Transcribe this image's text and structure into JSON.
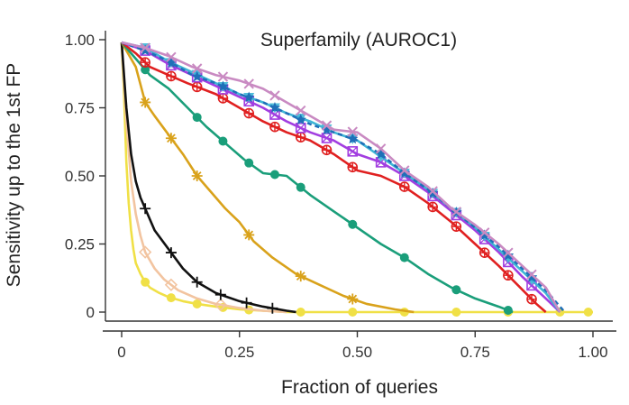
{
  "chart_data": {
    "type": "line",
    "title": "Superfamily (AUROC1)",
    "xlabel": "Fraction of queries",
    "ylabel": "Sensitivity up to the 1st FP",
    "xlim": [
      0,
      1
    ],
    "ylim": [
      0,
      1
    ],
    "xticks": [
      "0",
      "0.25",
      "0.50",
      "0.75",
      "1.00"
    ],
    "xtick_values": [
      0,
      0.25,
      0.5,
      0.75,
      1.0
    ],
    "yticks": [
      "0",
      "0.25",
      "0.50",
      "0.75",
      "1.00"
    ],
    "ytick_values": [
      0,
      0.25,
      0.5,
      0.75,
      1.0
    ],
    "grid": false,
    "legend": "none",
    "series": [
      {
        "color": "#f0e046",
        "marker": "circle-filled",
        "dashed": false,
        "x": [
          0.0,
          0.005,
          0.01,
          0.015,
          0.02,
          0.025,
          0.03,
          0.04,
          0.05,
          0.06,
          0.08,
          0.1,
          0.13,
          0.16,
          0.2,
          0.25,
          0.3,
          0.35,
          0.4,
          0.5,
          0.6,
          0.7,
          0.8,
          0.9,
          1.0
        ],
        "y": [
          0.99,
          0.8,
          0.55,
          0.4,
          0.3,
          0.23,
          0.18,
          0.14,
          0.11,
          0.09,
          0.07,
          0.055,
          0.04,
          0.03,
          0.02,
          0.01,
          0.005,
          0.0,
          0.0,
          0.0,
          0.0,
          0.0,
          0.0,
          0.0,
          0.0
        ],
        "marker_x": [
          0.05,
          0.105,
          0.16,
          0.215,
          0.27,
          0.38,
          0.49,
          0.6,
          0.71,
          0.82,
          0.93,
          0.99
        ]
      },
      {
        "color": "#f2c4a0",
        "marker": "diamond-open",
        "dashed": false,
        "x": [
          0.0,
          0.01,
          0.02,
          0.03,
          0.04,
          0.05,
          0.07,
          0.09,
          0.12,
          0.16,
          0.2,
          0.25,
          0.3,
          0.35
        ],
        "y": [
          0.99,
          0.7,
          0.48,
          0.36,
          0.28,
          0.22,
          0.16,
          0.12,
          0.08,
          0.05,
          0.03,
          0.015,
          0.005,
          0.0
        ],
        "marker_x": [
          0.05,
          0.105,
          0.21
        ]
      },
      {
        "color": "#111111",
        "marker": "plus",
        "dashed": false,
        "x": [
          0.0,
          0.01,
          0.02,
          0.03,
          0.04,
          0.05,
          0.07,
          0.1,
          0.13,
          0.16,
          0.2,
          0.25,
          0.3,
          0.35,
          0.37
        ],
        "y": [
          0.99,
          0.75,
          0.58,
          0.48,
          0.42,
          0.38,
          0.3,
          0.23,
          0.16,
          0.11,
          0.07,
          0.04,
          0.02,
          0.005,
          0.0
        ],
        "marker_x": [
          0.05,
          0.105,
          0.16,
          0.21,
          0.265,
          0.32
        ]
      },
      {
        "color": "#d9a21b",
        "marker": "asterisk",
        "dashed": false,
        "x": [
          0.0,
          0.03,
          0.05,
          0.07,
          0.1,
          0.13,
          0.16,
          0.19,
          0.22,
          0.25,
          0.28,
          0.32,
          0.37,
          0.42,
          0.47,
          0.52,
          0.58,
          0.62
        ],
        "y": [
          0.99,
          0.9,
          0.77,
          0.72,
          0.65,
          0.58,
          0.5,
          0.44,
          0.38,
          0.33,
          0.26,
          0.2,
          0.14,
          0.1,
          0.06,
          0.03,
          0.01,
          0.0
        ],
        "marker_x": [
          0.05,
          0.105,
          0.16,
          0.27,
          0.38,
          0.49
        ]
      },
      {
        "color": "#1a9e7a",
        "marker": "circle-filled",
        "dashed": false,
        "x": [
          0.0,
          0.03,
          0.06,
          0.1,
          0.14,
          0.18,
          0.22,
          0.26,
          0.3,
          0.35,
          0.4,
          0.45,
          0.5,
          0.55,
          0.6,
          0.65,
          0.7,
          0.75,
          0.8,
          0.83
        ],
        "y": [
          0.99,
          0.93,
          0.87,
          0.82,
          0.75,
          0.68,
          0.62,
          0.56,
          0.51,
          0.5,
          0.43,
          0.37,
          0.31,
          0.25,
          0.2,
          0.14,
          0.09,
          0.05,
          0.02,
          0.0
        ],
        "marker_x": [
          0.05,
          0.16,
          0.215,
          0.27,
          0.325,
          0.38,
          0.49,
          0.6,
          0.71,
          0.82
        ]
      },
      {
        "color": "#e02020",
        "marker": "circle-cross",
        "dashed": false,
        "x": [
          0.0,
          0.03,
          0.06,
          0.1,
          0.14,
          0.2,
          0.25,
          0.3,
          0.35,
          0.4,
          0.45,
          0.5,
          0.55,
          0.6,
          0.65,
          0.7,
          0.75,
          0.8,
          0.84,
          0.88,
          0.9
        ],
        "y": [
          0.99,
          0.95,
          0.9,
          0.87,
          0.84,
          0.8,
          0.75,
          0.7,
          0.66,
          0.63,
          0.58,
          0.52,
          0.5,
          0.46,
          0.4,
          0.33,
          0.25,
          0.17,
          0.1,
          0.03,
          0.0
        ],
        "marker_x": [
          0.05,
          0.105,
          0.16,
          0.215,
          0.27,
          0.325,
          0.38,
          0.435,
          0.49,
          0.6,
          0.66,
          0.71,
          0.77,
          0.82,
          0.87
        ]
      },
      {
        "color": "#a23ee0",
        "marker": "square-cross",
        "dashed": false,
        "x": [
          0.0,
          0.05,
          0.1,
          0.15,
          0.2,
          0.25,
          0.3,
          0.35,
          0.4,
          0.45,
          0.5,
          0.55,
          0.6,
          0.65,
          0.7,
          0.75,
          0.8,
          0.85,
          0.9,
          0.93
        ],
        "y": [
          0.99,
          0.96,
          0.91,
          0.87,
          0.83,
          0.79,
          0.75,
          0.7,
          0.66,
          0.63,
          0.58,
          0.55,
          0.5,
          0.44,
          0.37,
          0.3,
          0.22,
          0.13,
          0.05,
          0.0
        ],
        "marker_x": [
          0.05,
          0.105,
          0.16,
          0.215,
          0.27,
          0.325,
          0.38,
          0.435,
          0.49,
          0.55,
          0.6,
          0.66,
          0.71,
          0.77,
          0.82,
          0.87
        ]
      },
      {
        "color": "#3fb6d6",
        "marker": "triangle-down",
        "dashed": false,
        "x": [
          0.0,
          0.05,
          0.1,
          0.15,
          0.2,
          0.25,
          0.3,
          0.35,
          0.4,
          0.45,
          0.5,
          0.55,
          0.6,
          0.65,
          0.7,
          0.75,
          0.8,
          0.85,
          0.9,
          0.93
        ],
        "y": [
          0.99,
          0.97,
          0.92,
          0.88,
          0.84,
          0.8,
          0.77,
          0.73,
          0.7,
          0.66,
          0.63,
          0.57,
          0.51,
          0.45,
          0.38,
          0.31,
          0.23,
          0.15,
          0.07,
          0.0
        ],
        "marker_x": [
          0.05,
          0.105,
          0.16,
          0.215,
          0.27,
          0.325,
          0.38,
          0.435,
          0.49,
          0.55,
          0.6,
          0.66,
          0.71,
          0.77,
          0.82,
          0.87
        ]
      },
      {
        "color": "#1f6fb8",
        "marker": "star",
        "dashed": true,
        "x": [
          0.0,
          0.05,
          0.1,
          0.15,
          0.2,
          0.25,
          0.3,
          0.35,
          0.4,
          0.45,
          0.5,
          0.55,
          0.6,
          0.65,
          0.7,
          0.75,
          0.8,
          0.85,
          0.9,
          0.94
        ],
        "y": [
          0.99,
          0.96,
          0.92,
          0.87,
          0.84,
          0.8,
          0.77,
          0.73,
          0.69,
          0.66,
          0.63,
          0.58,
          0.51,
          0.45,
          0.38,
          0.31,
          0.24,
          0.16,
          0.08,
          0.0
        ],
        "marker_x": [
          0.05,
          0.105,
          0.16,
          0.215,
          0.27,
          0.325,
          0.38,
          0.435,
          0.49,
          0.55,
          0.6,
          0.66,
          0.71,
          0.77,
          0.82,
          0.87
        ]
      },
      {
        "color": "#c98ac2",
        "marker": "x",
        "dashed": false,
        "x": [
          0.0,
          0.05,
          0.1,
          0.15,
          0.2,
          0.25,
          0.3,
          0.35,
          0.4,
          0.45,
          0.5,
          0.55,
          0.6,
          0.65,
          0.7,
          0.75,
          0.8,
          0.85,
          0.9,
          0.93
        ],
        "y": [
          0.99,
          0.97,
          0.94,
          0.9,
          0.87,
          0.85,
          0.82,
          0.77,
          0.72,
          0.67,
          0.66,
          0.6,
          0.52,
          0.46,
          0.38,
          0.32,
          0.25,
          0.17,
          0.09,
          0.0
        ],
        "marker_x": [
          0.05,
          0.105,
          0.16,
          0.215,
          0.27,
          0.325,
          0.38,
          0.435,
          0.49,
          0.55,
          0.6,
          0.66,
          0.71,
          0.77,
          0.82,
          0.87
        ]
      }
    ]
  }
}
